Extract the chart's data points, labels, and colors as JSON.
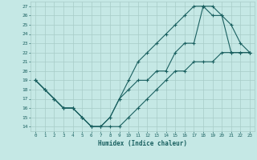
{
  "xlabel": "Humidex (Indice chaleur)",
  "xlim": [
    -0.5,
    23.5
  ],
  "ylim": [
    13.5,
    27.5
  ],
  "xticks": [
    0,
    1,
    2,
    3,
    4,
    5,
    6,
    7,
    8,
    9,
    10,
    11,
    12,
    13,
    14,
    15,
    16,
    17,
    18,
    19,
    20,
    21,
    22,
    23
  ],
  "yticks": [
    14,
    15,
    16,
    17,
    18,
    19,
    20,
    21,
    22,
    23,
    24,
    25,
    26,
    27
  ],
  "bg_color": "#c5e8e5",
  "grid_color": "#a8ccc8",
  "line_color": "#1a6060",
  "line1_x": [
    0,
    1,
    2,
    3,
    4,
    5,
    6,
    7,
    8,
    9,
    10,
    11,
    12,
    13,
    14,
    15,
    16,
    17,
    18,
    19,
    20,
    21,
    22,
    23
  ],
  "line1_y": [
    19,
    18,
    17,
    16,
    16,
    15,
    14,
    14,
    15,
    17,
    18,
    19,
    19,
    20,
    20,
    22,
    23,
    23,
    27,
    26,
    26,
    25,
    23,
    22
  ],
  "line2_x": [
    0,
    1,
    2,
    3,
    4,
    5,
    6,
    7,
    8,
    9,
    10,
    11,
    12,
    13,
    14,
    15,
    16,
    17,
    18,
    19,
    20,
    21,
    22,
    23
  ],
  "line2_y": [
    19,
    18,
    17,
    16,
    16,
    15,
    14,
    14,
    15,
    17,
    19,
    21,
    22,
    23,
    24,
    25,
    26,
    27,
    27,
    27,
    26,
    22,
    22,
    22
  ],
  "line3_x": [
    0,
    1,
    2,
    3,
    4,
    5,
    6,
    7,
    8,
    9,
    10,
    11,
    12,
    13,
    14,
    15,
    16,
    17,
    18,
    19,
    20,
    21,
    22,
    23
  ],
  "line3_y": [
    19,
    18,
    17,
    16,
    16,
    15,
    14,
    14,
    14,
    14,
    15,
    16,
    17,
    18,
    19,
    20,
    20,
    21,
    21,
    21,
    22,
    22,
    22,
    22
  ]
}
